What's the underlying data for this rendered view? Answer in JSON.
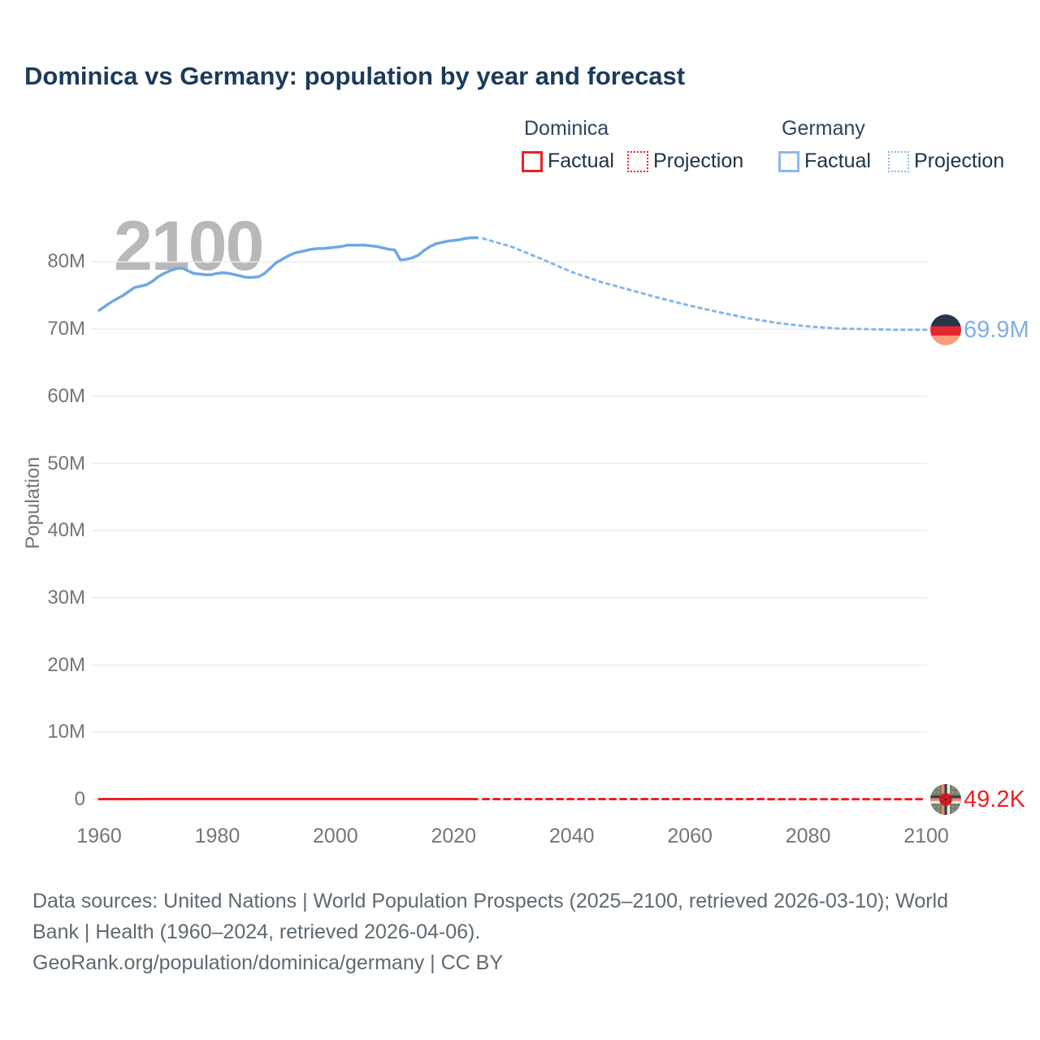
{
  "header": {
    "title": "Dominica vs Germany: population by year and forecast"
  },
  "legend": {
    "groups": [
      {
        "name": "Dominica",
        "items": [
          {
            "label": "Factual",
            "style": "solid-red"
          },
          {
            "label": "Projection",
            "style": "dotted-red"
          }
        ]
      },
      {
        "name": "Germany",
        "items": [
          {
            "label": "Factual",
            "style": "solid-blue"
          },
          {
            "label": "Projection",
            "style": "dotted-blue"
          }
        ]
      }
    ]
  },
  "chart_data": {
    "type": "line",
    "title": "Dominica vs Germany: population by year and forecast",
    "xlabel": "",
    "ylabel": "Population",
    "watermark": "2100",
    "unit": "millions of people",
    "xlim": [
      1960,
      2100
    ],
    "ylim": [
      0,
      86
    ],
    "grid": "horizontal",
    "legend_position": "top-right",
    "x_ticks": {
      "values": [
        1960,
        1980,
        2000,
        2020,
        2040,
        2060,
        2080,
        2100
      ],
      "labels": [
        "1960",
        "1980",
        "2000",
        "2020",
        "2040",
        "2060",
        "2080",
        "2100"
      ]
    },
    "y_ticks": {
      "values": [
        0,
        10,
        20,
        30,
        40,
        50,
        60,
        70,
        80
      ],
      "labels": [
        "0",
        "10M",
        "20M",
        "30M",
        "40M",
        "50M",
        "60M",
        "70M",
        "80M"
      ]
    },
    "series": [
      {
        "id": "germany-factual",
        "country": "Germany",
        "kind": "factual",
        "color": "#6da9e4",
        "width": 3.5,
        "dash": null,
        "points": [
          [
            1960,
            72.8
          ],
          [
            1961,
            73.4
          ],
          [
            1962,
            74.0
          ],
          [
            1963,
            74.5
          ],
          [
            1964,
            75.0
          ],
          [
            1965,
            75.6
          ],
          [
            1966,
            76.2
          ],
          [
            1967,
            76.4
          ],
          [
            1968,
            76.6
          ],
          [
            1969,
            77.1
          ],
          [
            1970,
            77.8
          ],
          [
            1971,
            78.3
          ],
          [
            1972,
            78.7
          ],
          [
            1973,
            79.0
          ],
          [
            1974,
            79.1
          ],
          [
            1975,
            78.7
          ],
          [
            1976,
            78.3
          ],
          [
            1977,
            78.2
          ],
          [
            1978,
            78.1
          ],
          [
            1979,
            78.1
          ],
          [
            1980,
            78.3
          ],
          [
            1981,
            78.4
          ],
          [
            1982,
            78.3
          ],
          [
            1983,
            78.1
          ],
          [
            1984,
            77.9
          ],
          [
            1985,
            77.7
          ],
          [
            1986,
            77.7
          ],
          [
            1987,
            77.8
          ],
          [
            1988,
            78.3
          ],
          [
            1989,
            79.1
          ],
          [
            1990,
            79.9
          ],
          [
            1991,
            80.4
          ],
          [
            1992,
            80.9
          ],
          [
            1993,
            81.3
          ],
          [
            1994,
            81.5
          ],
          [
            1995,
            81.7
          ],
          [
            1996,
            81.9
          ],
          [
            1997,
            82.0
          ],
          [
            1998,
            82.0
          ],
          [
            1999,
            82.1
          ],
          [
            2000,
            82.2
          ],
          [
            2001,
            82.3
          ],
          [
            2002,
            82.5
          ],
          [
            2003,
            82.5
          ],
          [
            2004,
            82.5
          ],
          [
            2005,
            82.5
          ],
          [
            2006,
            82.4
          ],
          [
            2007,
            82.3
          ],
          [
            2008,
            82.1
          ],
          [
            2009,
            81.9
          ],
          [
            2010,
            81.8
          ],
          [
            2011,
            80.3
          ],
          [
            2012,
            80.4
          ],
          [
            2013,
            80.6
          ],
          [
            2014,
            81.0
          ],
          [
            2015,
            81.7
          ],
          [
            2016,
            82.3
          ],
          [
            2017,
            82.7
          ],
          [
            2018,
            82.9
          ],
          [
            2019,
            83.1
          ],
          [
            2020,
            83.2
          ],
          [
            2021,
            83.3
          ],
          [
            2022,
            83.5
          ],
          [
            2023,
            83.6
          ],
          [
            2024,
            83.6
          ]
        ]
      },
      {
        "id": "germany-projection",
        "country": "Germany",
        "kind": "projection",
        "color": "#85b7e8",
        "width": 3,
        "dash": "3.5 5.5",
        "points": [
          [
            2025,
            83.5
          ],
          [
            2030,
            82.2
          ],
          [
            2035,
            80.4
          ],
          [
            2040,
            78.5
          ],
          [
            2045,
            77.0
          ],
          [
            2050,
            75.8
          ],
          [
            2055,
            74.6
          ],
          [
            2060,
            73.5
          ],
          [
            2065,
            72.5
          ],
          [
            2070,
            71.6
          ],
          [
            2075,
            70.9
          ],
          [
            2080,
            70.4
          ],
          [
            2085,
            70.1
          ],
          [
            2090,
            70.0
          ],
          [
            2095,
            69.9
          ],
          [
            2100,
            69.9
          ]
        ]
      },
      {
        "id": "dominica-factual",
        "country": "Dominica",
        "kind": "factual",
        "color": "#ee2024",
        "width": 3,
        "dash": null,
        "points": [
          [
            1960,
            0.06
          ],
          [
            1965,
            0.065
          ],
          [
            1970,
            0.069
          ],
          [
            1975,
            0.072
          ],
          [
            1980,
            0.073
          ],
          [
            1985,
            0.071
          ],
          [
            1990,
            0.069
          ],
          [
            1995,
            0.068
          ],
          [
            2000,
            0.068
          ],
          [
            2005,
            0.069
          ],
          [
            2010,
            0.069
          ],
          [
            2015,
            0.068
          ],
          [
            2020,
            0.067
          ],
          [
            2024,
            0.066
          ]
        ]
      },
      {
        "id": "dominica-projection",
        "country": "Dominica",
        "kind": "projection",
        "color": "#ee2024",
        "width": 3,
        "dash": "7 6",
        "points": [
          [
            2025,
            0.066
          ],
          [
            2040,
            0.0625
          ],
          [
            2060,
            0.0575
          ],
          [
            2080,
            0.0533
          ],
          [
            2100,
            0.0492
          ]
        ]
      }
    ],
    "end_labels": {
      "germany": {
        "text": "69.9M",
        "value": 69.9,
        "year": 2100
      },
      "dominica": {
        "text": "49.2K",
        "value": 0.0492,
        "year": 2100
      }
    }
  },
  "footer": {
    "lines": [
      "Data sources: United Nations | World Population Prospects (2025–2100, retrieved 2026-03-10); World",
      "Bank | Health (1960–2024, retrieved 2026-04-06).",
      "GeoRank.org/population/dominica/germany | CC BY"
    ]
  },
  "icons": {
    "germany_flag": "germany-flag-icon (black/red/gold roundel)",
    "dominica_flag": "dominica-flag-icon (green field, cross, red disc)"
  },
  "colors": {
    "title_navy": "#1c3a5b",
    "legend_name": "#2e4458",
    "legend_text": "#1e3248",
    "dominica_red": "#ee2024",
    "germany_blue_box": "#88bbee",
    "germany_blue_line": "#6da9e4",
    "label_blue": "#7fb0e6",
    "label_red": "#ee2024",
    "axis_text": "#757575",
    "footer_text": "#5e6971",
    "watermark": "#b8b8b8",
    "grid": "#ececec",
    "de_top": "#273649",
    "de_mid": "#e32730",
    "de_bottom": "#f89c7b",
    "dm_base": "#78816c",
    "dm_dot": "#9aa38b",
    "dm_salmon": "#f08466",
    "dm_dark": "#39424e",
    "dm_white": "#ececec",
    "dm_disc": "#d5202b",
    "dm_disc_dot": "#801a20"
  }
}
